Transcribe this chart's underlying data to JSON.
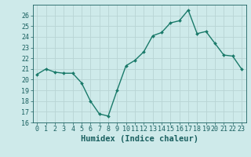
{
  "x": [
    0,
    1,
    2,
    3,
    4,
    5,
    6,
    7,
    8,
    9,
    10,
    11,
    12,
    13,
    14,
    15,
    16,
    17,
    18,
    19,
    20,
    21,
    22,
    23
  ],
  "y": [
    20.5,
    21.0,
    20.7,
    20.6,
    20.6,
    19.7,
    18.0,
    16.8,
    16.6,
    19.0,
    21.3,
    21.8,
    22.6,
    24.1,
    24.4,
    25.3,
    25.5,
    26.5,
    24.3,
    24.5,
    23.4,
    22.3,
    22.2,
    21.0
  ],
  "line_color": "#1a7a6a",
  "marker": "D",
  "marker_size": 2.0,
  "bg_color": "#ceeaea",
  "grid_color": "#b8d4d4",
  "xlabel": "Humidex (Indice chaleur)",
  "xlim": [
    -0.5,
    23.5
  ],
  "ylim": [
    16,
    27
  ],
  "yticks": [
    16,
    17,
    18,
    19,
    20,
    21,
    22,
    23,
    24,
    25,
    26
  ],
  "xticks": [
    0,
    1,
    2,
    3,
    4,
    5,
    6,
    7,
    8,
    9,
    10,
    11,
    12,
    13,
    14,
    15,
    16,
    17,
    18,
    19,
    20,
    21,
    22,
    23
  ],
  "tick_color": "#1a6060",
  "xlabel_fontsize": 7.5,
  "tick_fontsize": 6.0,
  "linewidth": 1.0
}
